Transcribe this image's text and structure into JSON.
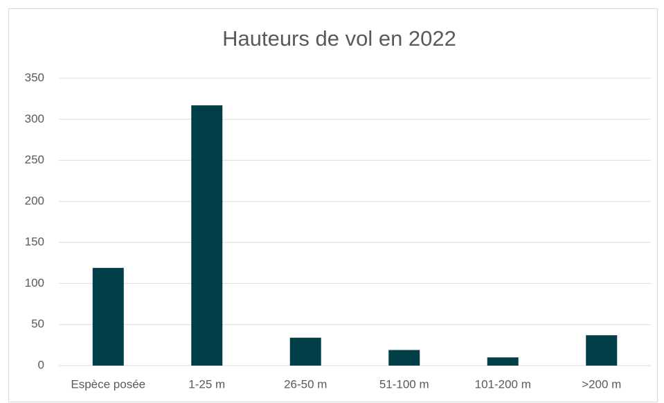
{
  "chart_data": {
    "type": "bar",
    "title": "Hauteurs de vol en 2022",
    "categories": [
      "Espèce posée",
      "1-25 m",
      "26-50 m",
      "51-100 m",
      "101-200 m",
      ">200 m"
    ],
    "values": [
      119,
      317,
      34,
      19,
      10,
      37
    ],
    "color": "#003f47",
    "ylim": [
      0,
      350
    ],
    "yticks": [
      0,
      50,
      100,
      150,
      200,
      250,
      300,
      350
    ],
    "grid": true
  }
}
